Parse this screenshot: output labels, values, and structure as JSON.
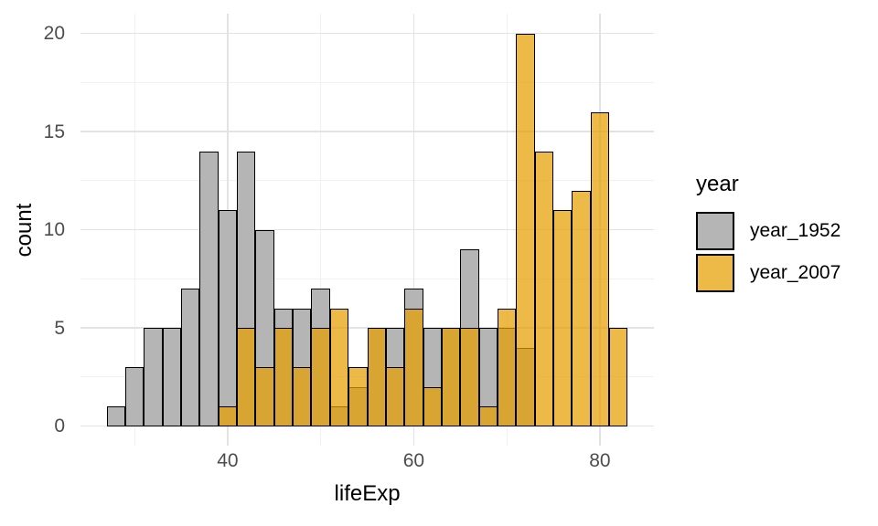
{
  "colors": {
    "background": "#FFFFFF",
    "bar_1952_fill": "#B5B5B5",
    "bar_2007_base": "#E69F00",
    "bar_2007_alpha": 0.72,
    "bar_border": "#000000",
    "grid_major": "#E3E3E3",
    "grid_minor": "#F1F1F1",
    "axis_text": "#4D4D4D",
    "title_text": "#000000"
  },
  "axes": {
    "x_title": "lifeExp",
    "y_title": "count"
  },
  "legend": {
    "title": "year",
    "items": [
      {
        "label": "year_1952",
        "swatch": "gray"
      },
      {
        "label": "year_2007",
        "swatch": "orange"
      }
    ]
  },
  "chart_data": {
    "type": "bar",
    "subtype": "overlaid-histogram",
    "title": "",
    "xlabel": "lifeExp",
    "ylabel": "count",
    "bin_width": 2,
    "bin_edges": [
      27,
      29,
      31,
      33,
      35,
      37,
      39,
      41,
      43,
      45,
      47,
      49,
      51,
      53,
      55,
      57,
      59,
      61,
      63,
      65,
      67,
      69,
      71,
      73,
      75,
      77,
      79,
      81,
      83
    ],
    "series": [
      {
        "name": "year_1952",
        "counts": [
          1,
          3,
          5,
          5,
          7,
          14,
          11,
          14,
          10,
          6,
          6,
          7,
          1,
          2,
          5,
          5,
          7,
          5,
          5,
          9,
          5,
          5,
          4,
          0,
          0,
          0,
          0,
          0
        ]
      },
      {
        "name": "year_2007",
        "counts": [
          0,
          0,
          0,
          0,
          0,
          0,
          1,
          5,
          3,
          5,
          3,
          5,
          6,
          3,
          5,
          3,
          6,
          2,
          5,
          5,
          1,
          6,
          20,
          14,
          11,
          12,
          16,
          5
        ]
      }
    ],
    "x_ticks": [
      40,
      60,
      80
    ],
    "x_minor_ticks": [
      30,
      50,
      70
    ],
    "y_ticks": [
      0,
      5,
      10,
      15,
      20
    ],
    "y_minor_ticks": [
      2.5,
      7.5,
      12.5,
      17.5
    ],
    "xlim": [
      27,
      83
    ],
    "ylim": [
      0,
      20
    ],
    "range_expansion": 0.05,
    "grid": true,
    "legend_position": "right"
  }
}
